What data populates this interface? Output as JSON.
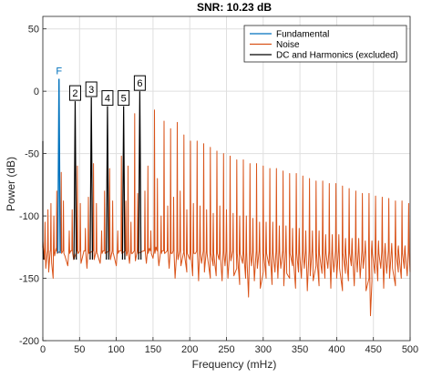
{
  "chart_data": {
    "type": "line",
    "title": "SNR:  10.23 dB",
    "xlabel": "Frequency (mHz)",
    "ylabel": "Power (dB)",
    "xlim": [
      0,
      500
    ],
    "ylim": [
      -200,
      60
    ],
    "xticks": [
      0,
      50,
      100,
      150,
      200,
      250,
      300,
      350,
      400,
      450,
      500
    ],
    "yticks": [
      50,
      0,
      -50,
      -100,
      -150,
      -200
    ],
    "grid": true,
    "legend_position": "top-right",
    "colors": {
      "fundamental": "#0072BD",
      "noise": "#D95319",
      "harmonics": "#000000",
      "grid": "#dfdfdf",
      "axis": "#262626"
    },
    "series": [
      {
        "name": "Fundamental",
        "color": "#0072BD",
        "peaks": [
          {
            "x": 22,
            "y": 10
          }
        ],
        "floor": -130
      },
      {
        "name": "Noise",
        "color": "#D95319",
        "floor_points": [
          [
            0,
            -120
          ],
          [
            2,
            -135
          ],
          [
            4,
            -142
          ],
          [
            6,
            -130
          ],
          [
            8,
            -145
          ],
          [
            10,
            -128
          ],
          [
            12,
            -138
          ],
          [
            14,
            -150
          ],
          [
            16,
            -132
          ],
          [
            18,
            -126
          ],
          [
            30,
            -132
          ],
          [
            34,
            -140
          ],
          [
            38,
            -128
          ],
          [
            42,
            -135
          ],
          [
            48,
            -130
          ],
          [
            52,
            -138
          ],
          [
            56,
            -128
          ],
          [
            60,
            -142
          ],
          [
            70,
            -135
          ],
          [
            74,
            -130
          ],
          [
            78,
            -138
          ],
          [
            82,
            -128
          ],
          [
            92,
            -135
          ],
          [
            96,
            -130
          ],
          [
            100,
            -140
          ],
          [
            104,
            -128
          ],
          [
            114,
            -132
          ],
          [
            118,
            -138
          ],
          [
            122,
            -130
          ],
          [
            126,
            -136
          ],
          [
            137,
            -128
          ],
          [
            141,
            -138
          ],
          [
            145,
            -126
          ],
          [
            150,
            -134
          ],
          [
            154,
            -125
          ],
          [
            158,
            -140
          ],
          [
            162,
            -128
          ],
          [
            166,
            -130
          ],
          [
            172,
            -142
          ],
          [
            176,
            -130
          ],
          [
            180,
            -150
          ],
          [
            184,
            -135
          ],
          [
            188,
            -140
          ],
          [
            192,
            -128
          ],
          [
            196,
            -145
          ],
          [
            200,
            -135
          ],
          [
            204,
            -148
          ],
          [
            208,
            -130
          ],
          [
            212,
            -152
          ],
          [
            216,
            -138
          ],
          [
            220,
            -145
          ],
          [
            224,
            -132
          ],
          [
            228,
            -150
          ],
          [
            232,
            -140
          ],
          [
            236,
            -148
          ],
          [
            240,
            -135
          ],
          [
            244,
            -152
          ],
          [
            248,
            -140
          ],
          [
            252,
            -150
          ],
          [
            256,
            -136
          ],
          [
            260,
            -148
          ],
          [
            264,
            -142
          ],
          [
            268,
            -155
          ],
          [
            272,
            -138
          ],
          [
            276,
            -150
          ],
          [
            280,
            -165
          ],
          [
            284,
            -140
          ],
          [
            288,
            -152
          ],
          [
            292,
            -142
          ],
          [
            296,
            -158
          ],
          [
            300,
            -145
          ],
          [
            304,
            -150
          ],
          [
            308,
            -140
          ],
          [
            312,
            -155
          ],
          [
            316,
            -145
          ],
          [
            320,
            -150
          ],
          [
            324,
            -142
          ],
          [
            328,
            -156
          ],
          [
            332,
            -146
          ],
          [
            336,
            -150
          ],
          [
            340,
            -140
          ],
          [
            344,
            -158
          ],
          [
            348,
            -145
          ],
          [
            352,
            -150
          ],
          [
            356,
            -142
          ],
          [
            360,
            -160
          ],
          [
            364,
            -148
          ],
          [
            368,
            -152
          ],
          [
            372,
            -140
          ],
          [
            376,
            -156
          ],
          [
            380,
            -146
          ],
          [
            384,
            -150
          ],
          [
            388,
            -142
          ],
          [
            392,
            -158
          ],
          [
            396,
            -145
          ],
          [
            400,
            -150
          ],
          [
            404,
            -142
          ],
          [
            408,
            -160
          ],
          [
            412,
            -146
          ],
          [
            416,
            -152
          ],
          [
            420,
            -140
          ],
          [
            424,
            -156
          ],
          [
            428,
            -145
          ],
          [
            432,
            -150
          ],
          [
            436,
            -142
          ],
          [
            440,
            -160
          ],
          [
            444,
            -150
          ],
          [
            446,
            -180
          ],
          [
            448,
            -152
          ],
          [
            452,
            -146
          ],
          [
            456,
            -152
          ],
          [
            460,
            -142
          ],
          [
            464,
            -158
          ],
          [
            468,
            -146
          ],
          [
            472,
            -150
          ],
          [
            476,
            -142
          ],
          [
            480,
            -156
          ],
          [
            484,
            -145
          ],
          [
            488,
            -150
          ],
          [
            492,
            -142
          ],
          [
            496,
            -148
          ],
          [
            500,
            -145
          ]
        ],
        "spikes": [
          {
            "x": 3,
            "y": -105
          },
          {
            "x": 7,
            "y": -95
          },
          {
            "x": 11,
            "y": -90
          },
          {
            "x": 15,
            "y": -100
          },
          {
            "x": 19,
            "y": -80
          },
          {
            "x": 25,
            "y": -65
          },
          {
            "x": 28,
            "y": -88
          },
          {
            "x": 36,
            "y": -112
          },
          {
            "x": 40,
            "y": -95
          },
          {
            "x": 47,
            "y": -60
          },
          {
            "x": 51,
            "y": -90
          },
          {
            "x": 58,
            "y": -110
          },
          {
            "x": 62,
            "y": -85
          },
          {
            "x": 69,
            "y": -58
          },
          {
            "x": 73,
            "y": -90
          },
          {
            "x": 80,
            "y": -112
          },
          {
            "x": 84,
            "y": -80
          },
          {
            "x": 91,
            "y": -62
          },
          {
            "x": 95,
            "y": -88
          },
          {
            "x": 102,
            "y": -112
          },
          {
            "x": 107,
            "y": -52
          },
          {
            "x": 113,
            "y": -88
          },
          {
            "x": 116,
            "y": -60
          },
          {
            "x": 120,
            "y": -105
          },
          {
            "x": 125,
            "y": -18
          },
          {
            "x": 129,
            "y": -82
          },
          {
            "x": 139,
            "y": -80
          },
          {
            "x": 143,
            "y": -60
          },
          {
            "x": 147,
            "y": -112
          },
          {
            "x": 152,
            "y": -15
          },
          {
            "x": 156,
            "y": -70
          },
          {
            "x": 161,
            "y": -100
          },
          {
            "x": 165,
            "y": -24
          },
          {
            "x": 170,
            "y": -92
          },
          {
            "x": 174,
            "y": -30
          },
          {
            "x": 178,
            "y": -85
          },
          {
            "x": 183,
            "y": -25
          },
          {
            "x": 187,
            "y": -80
          },
          {
            "x": 192,
            "y": -35
          },
          {
            "x": 196,
            "y": -95
          },
          {
            "x": 201,
            "y": -40
          },
          {
            "x": 205,
            "y": -90
          },
          {
            "x": 210,
            "y": -40
          },
          {
            "x": 214,
            "y": -92
          },
          {
            "x": 219,
            "y": -42
          },
          {
            "x": 223,
            "y": -95
          },
          {
            "x": 228,
            "y": -45
          },
          {
            "x": 232,
            "y": -98
          },
          {
            "x": 237,
            "y": -48
          },
          {
            "x": 241,
            "y": -92
          },
          {
            "x": 246,
            "y": -50
          },
          {
            "x": 250,
            "y": -95
          },
          {
            "x": 255,
            "y": -52
          },
          {
            "x": 259,
            "y": -98
          },
          {
            "x": 264,
            "y": -55
          },
          {
            "x": 268,
            "y": -100
          },
          {
            "x": 273,
            "y": -55
          },
          {
            "x": 277,
            "y": -100
          },
          {
            "x": 282,
            "y": -58
          },
          {
            "x": 286,
            "y": -102
          },
          {
            "x": 291,
            "y": -58
          },
          {
            "x": 295,
            "y": -105
          },
          {
            "x": 300,
            "y": -60
          },
          {
            "x": 304,
            "y": -105
          },
          {
            "x": 309,
            "y": -62
          },
          {
            "x": 313,
            "y": -105
          },
          {
            "x": 318,
            "y": -62
          },
          {
            "x": 322,
            "y": -108
          },
          {
            "x": 327,
            "y": -64
          },
          {
            "x": 331,
            "y": -108
          },
          {
            "x": 336,
            "y": -66
          },
          {
            "x": 340,
            "y": -110
          },
          {
            "x": 345,
            "y": -66
          },
          {
            "x": 349,
            "y": -110
          },
          {
            "x": 354,
            "y": -68
          },
          {
            "x": 358,
            "y": -112
          },
          {
            "x": 363,
            "y": -70
          },
          {
            "x": 367,
            "y": -112
          },
          {
            "x": 372,
            "y": -72
          },
          {
            "x": 376,
            "y": -112
          },
          {
            "x": 381,
            "y": -72
          },
          {
            "x": 385,
            "y": -115
          },
          {
            "x": 390,
            "y": -74
          },
          {
            "x": 394,
            "y": -115
          },
          {
            "x": 399,
            "y": -74
          },
          {
            "x": 403,
            "y": -115
          },
          {
            "x": 408,
            "y": -76
          },
          {
            "x": 412,
            "y": -118
          },
          {
            "x": 417,
            "y": -78
          },
          {
            "x": 421,
            "y": -118
          },
          {
            "x": 426,
            "y": -80
          },
          {
            "x": 430,
            "y": -118
          },
          {
            "x": 435,
            "y": -82
          },
          {
            "x": 439,
            "y": -120
          },
          {
            "x": 444,
            "y": -82
          },
          {
            "x": 448,
            "y": -120
          },
          {
            "x": 453,
            "y": -84
          },
          {
            "x": 457,
            "y": -120
          },
          {
            "x": 462,
            "y": -85
          },
          {
            "x": 466,
            "y": -122
          },
          {
            "x": 471,
            "y": -86
          },
          {
            "x": 475,
            "y": -122
          },
          {
            "x": 480,
            "y": -88
          },
          {
            "x": 484,
            "y": -124
          },
          {
            "x": 489,
            "y": -88
          },
          {
            "x": 493,
            "y": -124
          },
          {
            "x": 498,
            "y": -90
          }
        ]
      },
      {
        "name": "DC and Harmonics (excluded)",
        "color": "#000000",
        "peaks": [
          {
            "x": 0,
            "y": -40
          },
          {
            "x": 44,
            "y": -8
          },
          {
            "x": 66,
            "y": -5
          },
          {
            "x": 88,
            "y": -12
          },
          {
            "x": 110,
            "y": -12
          },
          {
            "x": 132,
            "y": 0
          }
        ],
        "floor": -135
      }
    ],
    "markers": [
      {
        "label": "F",
        "x": 22,
        "y": 10,
        "color": "#0072BD"
      },
      {
        "label": "2",
        "x": 44,
        "y": -8,
        "color": "#000000"
      },
      {
        "label": "3",
        "x": 66,
        "y": -5,
        "color": "#000000"
      },
      {
        "label": "4",
        "x": 88,
        "y": -12,
        "color": "#000000"
      },
      {
        "label": "5",
        "x": 110,
        "y": -12,
        "color": "#000000"
      },
      {
        "label": "6",
        "x": 132,
        "y": 0,
        "color": "#000000"
      }
    ]
  }
}
